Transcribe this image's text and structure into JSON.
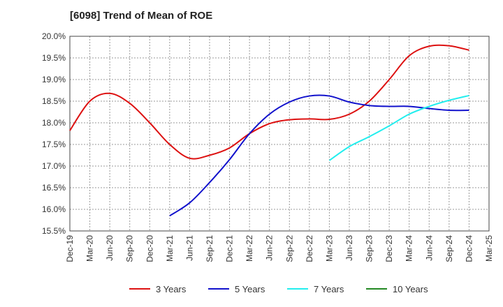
{
  "title": "[6098]  Trend of Mean of ROE",
  "chart_data": {
    "type": "line",
    "title": "[6098]  Trend of Mean of ROE",
    "x_categories": [
      "Dec-19",
      "Mar-20",
      "Jun-20",
      "Sep-20",
      "Dec-20",
      "Mar-21",
      "Jun-21",
      "Sep-21",
      "Dec-21",
      "Mar-22",
      "Jun-22",
      "Sep-22",
      "Dec-22",
      "Mar-23",
      "Jun-23",
      "Sep-23",
      "Dec-23",
      "Mar-24",
      "Jun-24",
      "Sep-24",
      "Dec-24",
      "Mar-25"
    ],
    "y_ticks": [
      "20.0%",
      "19.5%",
      "19.0%",
      "18.5%",
      "18.0%",
      "17.5%",
      "17.0%",
      "16.5%",
      "16.0%",
      "15.5%"
    ],
    "ylim": [
      15.5,
      20.0
    ],
    "grid": true,
    "legend_position": "bottom",
    "series": [
      {
        "name": "3 Years",
        "color": "#dd1111",
        "x": [
          "Dec-19",
          "Mar-20",
          "Jun-20",
          "Sep-20",
          "Dec-20",
          "Mar-21",
          "Jun-21",
          "Sep-21",
          "Dec-21",
          "Mar-22",
          "Jun-22",
          "Sep-22",
          "Dec-22",
          "Mar-23",
          "Jun-23",
          "Sep-23",
          "Dec-23",
          "Mar-24",
          "Jun-24",
          "Sep-24",
          "Dec-24"
        ],
        "values": [
          17.82,
          18.5,
          18.68,
          18.45,
          18.0,
          17.5,
          17.18,
          17.25,
          17.42,
          17.75,
          17.98,
          18.07,
          18.09,
          18.08,
          18.2,
          18.5,
          19.0,
          19.55,
          19.77,
          19.78,
          19.68
        ]
      },
      {
        "name": "5 Years",
        "color": "#1111cc",
        "x": [
          "Mar-21",
          "Jun-21",
          "Sep-21",
          "Dec-21",
          "Mar-22",
          "Jun-22",
          "Sep-22",
          "Dec-22",
          "Mar-23",
          "Jun-23",
          "Sep-23",
          "Dec-23",
          "Mar-24",
          "Jun-24",
          "Sep-24",
          "Dec-24"
        ],
        "values": [
          15.85,
          16.15,
          16.62,
          17.15,
          17.75,
          18.2,
          18.48,
          18.62,
          18.62,
          18.48,
          18.4,
          18.38,
          18.38,
          18.33,
          18.29,
          18.29
        ]
      },
      {
        "name": "7 Years",
        "color": "#22eeee",
        "x": [
          "Mar-23",
          "Jun-23",
          "Sep-23",
          "Dec-23",
          "Mar-24",
          "Jun-24",
          "Sep-24",
          "Dec-24"
        ],
        "values": [
          17.13,
          17.45,
          17.68,
          17.93,
          18.2,
          18.38,
          18.52,
          18.63
        ]
      },
      {
        "name": "10 Years",
        "color": "#228822",
        "x": [],
        "values": []
      }
    ]
  }
}
